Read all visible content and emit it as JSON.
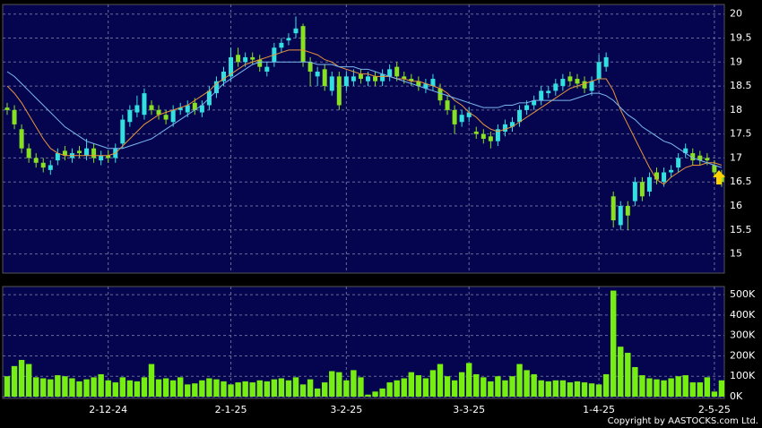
{
  "chart_data": [
    {
      "type": "candlestick",
      "up_color": "#33e0e0",
      "down_color": "#88e022",
      "ylim": [
        14.6,
        20.2
      ],
      "yticks": [
        15,
        15.5,
        16,
        16.5,
        17,
        17.5,
        18,
        18.5,
        19,
        19.5,
        20
      ],
      "grid": true,
      "open": [
        18.05,
        18.0,
        17.6,
        17.2,
        17.0,
        16.9,
        16.75,
        16.95,
        17.15,
        17.0,
        17.15,
        17.05,
        17.2,
        16.95,
        17.05,
        17.0,
        17.3,
        17.75,
        17.95,
        17.9,
        18.1,
        18.0,
        17.9,
        17.75,
        18.0,
        17.95,
        18.15,
        17.95,
        18.1,
        18.35,
        18.6,
        18.7,
        19.15,
        19.0,
        19.1,
        19.05,
        18.8,
        19.0,
        19.3,
        19.45,
        19.6,
        19.75,
        19.0,
        18.7,
        18.85,
        18.4,
        18.7,
        18.5,
        18.6,
        18.75,
        18.6,
        18.7,
        18.6,
        18.7,
        18.9,
        18.7,
        18.65,
        18.6,
        18.45,
        18.5,
        18.45,
        18.2,
        18.0,
        17.75,
        17.85,
        17.55,
        17.5,
        17.45,
        17.35,
        17.55,
        17.65,
        17.75,
        18.0,
        18.1,
        18.2,
        18.35,
        18.4,
        18.5,
        18.7,
        18.65,
        18.6,
        18.4,
        18.65,
        18.9,
        16.2,
        15.6,
        16.0,
        16.1,
        16.5,
        16.3,
        16.7,
        16.5,
        16.7,
        16.8,
        17.1,
        17.1,
        17.05,
        17.0,
        16.85,
        16.65
      ],
      "high": [
        18.15,
        18.1,
        17.7,
        17.3,
        17.1,
        17.0,
        16.95,
        17.2,
        17.25,
        17.2,
        17.25,
        17.4,
        17.3,
        17.15,
        17.15,
        17.3,
        17.9,
        18.1,
        18.3,
        18.45,
        18.2,
        18.1,
        18.0,
        18.1,
        18.15,
        18.2,
        18.25,
        18.2,
        18.5,
        18.7,
        18.9,
        19.3,
        19.3,
        19.2,
        19.2,
        19.15,
        19.0,
        19.4,
        19.5,
        19.6,
        19.95,
        19.8,
        19.1,
        18.9,
        18.95,
        18.8,
        18.8,
        18.8,
        18.85,
        18.85,
        18.8,
        18.8,
        18.85,
        18.95,
        19.0,
        18.8,
        18.75,
        18.7,
        18.65,
        18.75,
        18.55,
        18.3,
        18.1,
        18.0,
        18.05,
        17.65,
        17.6,
        17.55,
        17.7,
        17.8,
        17.85,
        18.1,
        18.2,
        18.3,
        18.5,
        18.5,
        18.65,
        18.75,
        18.8,
        18.75,
        18.7,
        18.7,
        19.15,
        19.2,
        16.3,
        16.1,
        16.1,
        16.6,
        16.6,
        16.7,
        16.8,
        16.8,
        16.85,
        17.1,
        17.3,
        17.2,
        17.15,
        17.1,
        16.95,
        16.75
      ],
      "low": [
        17.9,
        17.6,
        17.1,
        16.9,
        16.8,
        16.7,
        16.65,
        16.85,
        16.95,
        16.9,
        17.0,
        16.95,
        16.9,
        16.85,
        16.9,
        16.9,
        17.2,
        17.65,
        17.85,
        17.8,
        17.9,
        17.8,
        17.7,
        17.65,
        17.9,
        17.85,
        17.9,
        17.85,
        18.0,
        18.25,
        18.5,
        18.6,
        18.9,
        18.9,
        18.95,
        18.8,
        18.7,
        18.9,
        19.2,
        19.35,
        19.5,
        18.9,
        18.5,
        18.5,
        18.4,
        18.3,
        18.0,
        18.4,
        18.5,
        18.55,
        18.5,
        18.5,
        18.5,
        18.6,
        18.6,
        18.55,
        18.5,
        18.4,
        18.35,
        18.4,
        18.1,
        17.9,
        17.5,
        17.65,
        17.75,
        17.4,
        17.3,
        17.2,
        17.25,
        17.45,
        17.55,
        17.65,
        17.9,
        18.0,
        18.1,
        18.25,
        18.3,
        18.4,
        18.5,
        18.45,
        18.35,
        18.3,
        18.55,
        18.8,
        15.55,
        15.5,
        15.5,
        16.0,
        16.1,
        16.2,
        16.45,
        16.4,
        16.6,
        16.7,
        17.0,
        16.85,
        16.85,
        16.85,
        16.6,
        16.4
      ],
      "close": [
        18.0,
        17.7,
        17.2,
        17.0,
        16.9,
        16.8,
        16.85,
        17.1,
        17.05,
        17.1,
        17.1,
        17.2,
        17.0,
        17.05,
        17.0,
        17.2,
        17.8,
        18.0,
        18.1,
        18.35,
        18.0,
        17.9,
        17.8,
        18.0,
        18.05,
        18.1,
        18.0,
        18.1,
        18.4,
        18.6,
        18.8,
        19.1,
        19.0,
        19.1,
        19.05,
        18.9,
        18.9,
        19.3,
        19.4,
        19.5,
        19.7,
        19.0,
        18.8,
        18.8,
        18.5,
        18.7,
        18.1,
        18.7,
        18.7,
        18.65,
        18.7,
        18.6,
        18.75,
        18.85,
        18.7,
        18.65,
        18.6,
        18.5,
        18.55,
        18.65,
        18.2,
        18.0,
        17.7,
        17.9,
        17.95,
        17.5,
        17.4,
        17.35,
        17.6,
        17.7,
        17.75,
        18.0,
        18.1,
        18.2,
        18.4,
        18.4,
        18.55,
        18.65,
        18.6,
        18.55,
        18.45,
        18.6,
        19.0,
        19.1,
        15.7,
        16.0,
        15.8,
        16.5,
        16.2,
        16.6,
        16.55,
        16.7,
        16.75,
        17.0,
        17.2,
        16.95,
        16.95,
        16.95,
        16.7,
        16.5
      ],
      "series": [
        {
          "color": "#e8953a",
          "values": [
            18.5,
            18.35,
            18.15,
            17.9,
            17.65,
            17.4,
            17.2,
            17.1,
            17.05,
            17.05,
            17.05,
            17.05,
            17.05,
            17.05,
            17.05,
            17.1,
            17.25,
            17.4,
            17.55,
            17.7,
            17.8,
            17.9,
            17.95,
            18.0,
            18.05,
            18.1,
            18.2,
            18.3,
            18.4,
            18.55,
            18.65,
            18.75,
            18.85,
            18.95,
            19.0,
            19.05,
            19.1,
            19.15,
            19.2,
            19.25,
            19.25,
            19.25,
            19.2,
            19.15,
            19.05,
            19.0,
            18.9,
            18.85,
            18.8,
            18.75,
            18.75,
            18.7,
            18.7,
            18.7,
            18.65,
            18.65,
            18.6,
            18.6,
            18.55,
            18.5,
            18.45,
            18.35,
            18.2,
            18.1,
            17.95,
            17.85,
            17.7,
            17.6,
            17.55,
            17.6,
            17.65,
            17.75,
            17.85,
            17.95,
            18.05,
            18.15,
            18.25,
            18.35,
            18.45,
            18.5,
            18.55,
            18.6,
            18.65,
            18.65,
            18.4,
            18.0,
            17.7,
            17.4,
            17.1,
            16.8,
            16.55,
            16.45,
            16.6,
            16.7,
            16.8,
            16.85,
            16.85,
            16.9,
            16.9,
            16.85
          ]
        },
        {
          "color": "#7ab8f0",
          "values": [
            18.8,
            18.7,
            18.55,
            18.4,
            18.25,
            18.1,
            17.95,
            17.8,
            17.65,
            17.55,
            17.45,
            17.35,
            17.3,
            17.25,
            17.2,
            17.2,
            17.2,
            17.25,
            17.3,
            17.35,
            17.4,
            17.5,
            17.6,
            17.7,
            17.8,
            17.9,
            18.0,
            18.1,
            18.25,
            18.4,
            18.55,
            18.65,
            18.75,
            18.85,
            18.95,
            19.0,
            19.0,
            19.0,
            19.0,
            19.0,
            19.0,
            19.0,
            19.0,
            18.95,
            18.95,
            18.95,
            18.9,
            18.9,
            18.9,
            18.85,
            18.85,
            18.8,
            18.75,
            18.7,
            18.65,
            18.6,
            18.55,
            18.5,
            18.45,
            18.4,
            18.35,
            18.3,
            18.25,
            18.2,
            18.15,
            18.1,
            18.05,
            18.05,
            18.05,
            18.1,
            18.1,
            18.15,
            18.15,
            18.2,
            18.2,
            18.2,
            18.2,
            18.2,
            18.2,
            18.25,
            18.3,
            18.35,
            18.35,
            18.3,
            18.2,
            18.05,
            17.9,
            17.8,
            17.65,
            17.55,
            17.45,
            17.35,
            17.3,
            17.2,
            17.1,
            17.0,
            16.95,
            16.9,
            16.85,
            16.8
          ]
        }
      ]
    },
    {
      "type": "bar",
      "color": "#77ee11",
      "ylim": [
        0,
        540000
      ],
      "yticks": [
        {
          "value": 0,
          "label": "0K"
        },
        {
          "value": 100000,
          "label": "100K"
        },
        {
          "value": 200000,
          "label": "200K"
        },
        {
          "value": 300000,
          "label": "300K"
        },
        {
          "value": 400000,
          "label": "400K"
        },
        {
          "value": 500000,
          "label": "500K"
        }
      ],
      "grid": true,
      "categories": [
        null,
        null,
        null,
        null,
        null,
        null,
        null,
        null,
        null,
        null,
        null,
        null,
        null,
        null,
        "2-12-24",
        null,
        null,
        null,
        null,
        null,
        null,
        null,
        null,
        null,
        null,
        null,
        null,
        null,
        null,
        null,
        null,
        "2-1-25",
        null,
        null,
        null,
        null,
        null,
        null,
        null,
        null,
        null,
        null,
        null,
        null,
        null,
        null,
        null,
        "3-2-25",
        null,
        null,
        null,
        null,
        null,
        null,
        null,
        null,
        null,
        null,
        null,
        null,
        null,
        null,
        null,
        null,
        "3-3-25",
        null,
        null,
        null,
        null,
        null,
        null,
        null,
        null,
        null,
        null,
        null,
        null,
        null,
        null,
        null,
        null,
        null,
        "1-4-25",
        null,
        null,
        null,
        null,
        null,
        null,
        null,
        null,
        null,
        null,
        null,
        null,
        null,
        null,
        null,
        "2-5-25",
        null
      ],
      "values": [
        100000,
        150000,
        180000,
        160000,
        95000,
        90000,
        85000,
        105000,
        100000,
        90000,
        75000,
        85000,
        95000,
        110000,
        80000,
        70000,
        95000,
        80000,
        75000,
        95000,
        160000,
        85000,
        90000,
        80000,
        95000,
        60000,
        65000,
        80000,
        90000,
        85000,
        75000,
        60000,
        70000,
        75000,
        70000,
        80000,
        75000,
        85000,
        90000,
        80000,
        95000,
        60000,
        85000,
        40000,
        70000,
        125000,
        120000,
        80000,
        130000,
        95000,
        10000,
        25000,
        40000,
        70000,
        80000,
        90000,
        120000,
        105000,
        90000,
        130000,
        160000,
        100000,
        80000,
        120000,
        165000,
        110000,
        95000,
        75000,
        100000,
        80000,
        100000,
        160000,
        130000,
        110000,
        80000,
        75000,
        80000,
        80000,
        70000,
        75000,
        70000,
        65000,
        60000,
        110000,
        520000,
        245000,
        215000,
        145000,
        105000,
        90000,
        85000,
        80000,
        90000,
        100000,
        105000,
        70000,
        70000,
        95000,
        25000,
        80000
      ]
    }
  ],
  "footer": "Copyright by AASTOCKS.com Ltd."
}
